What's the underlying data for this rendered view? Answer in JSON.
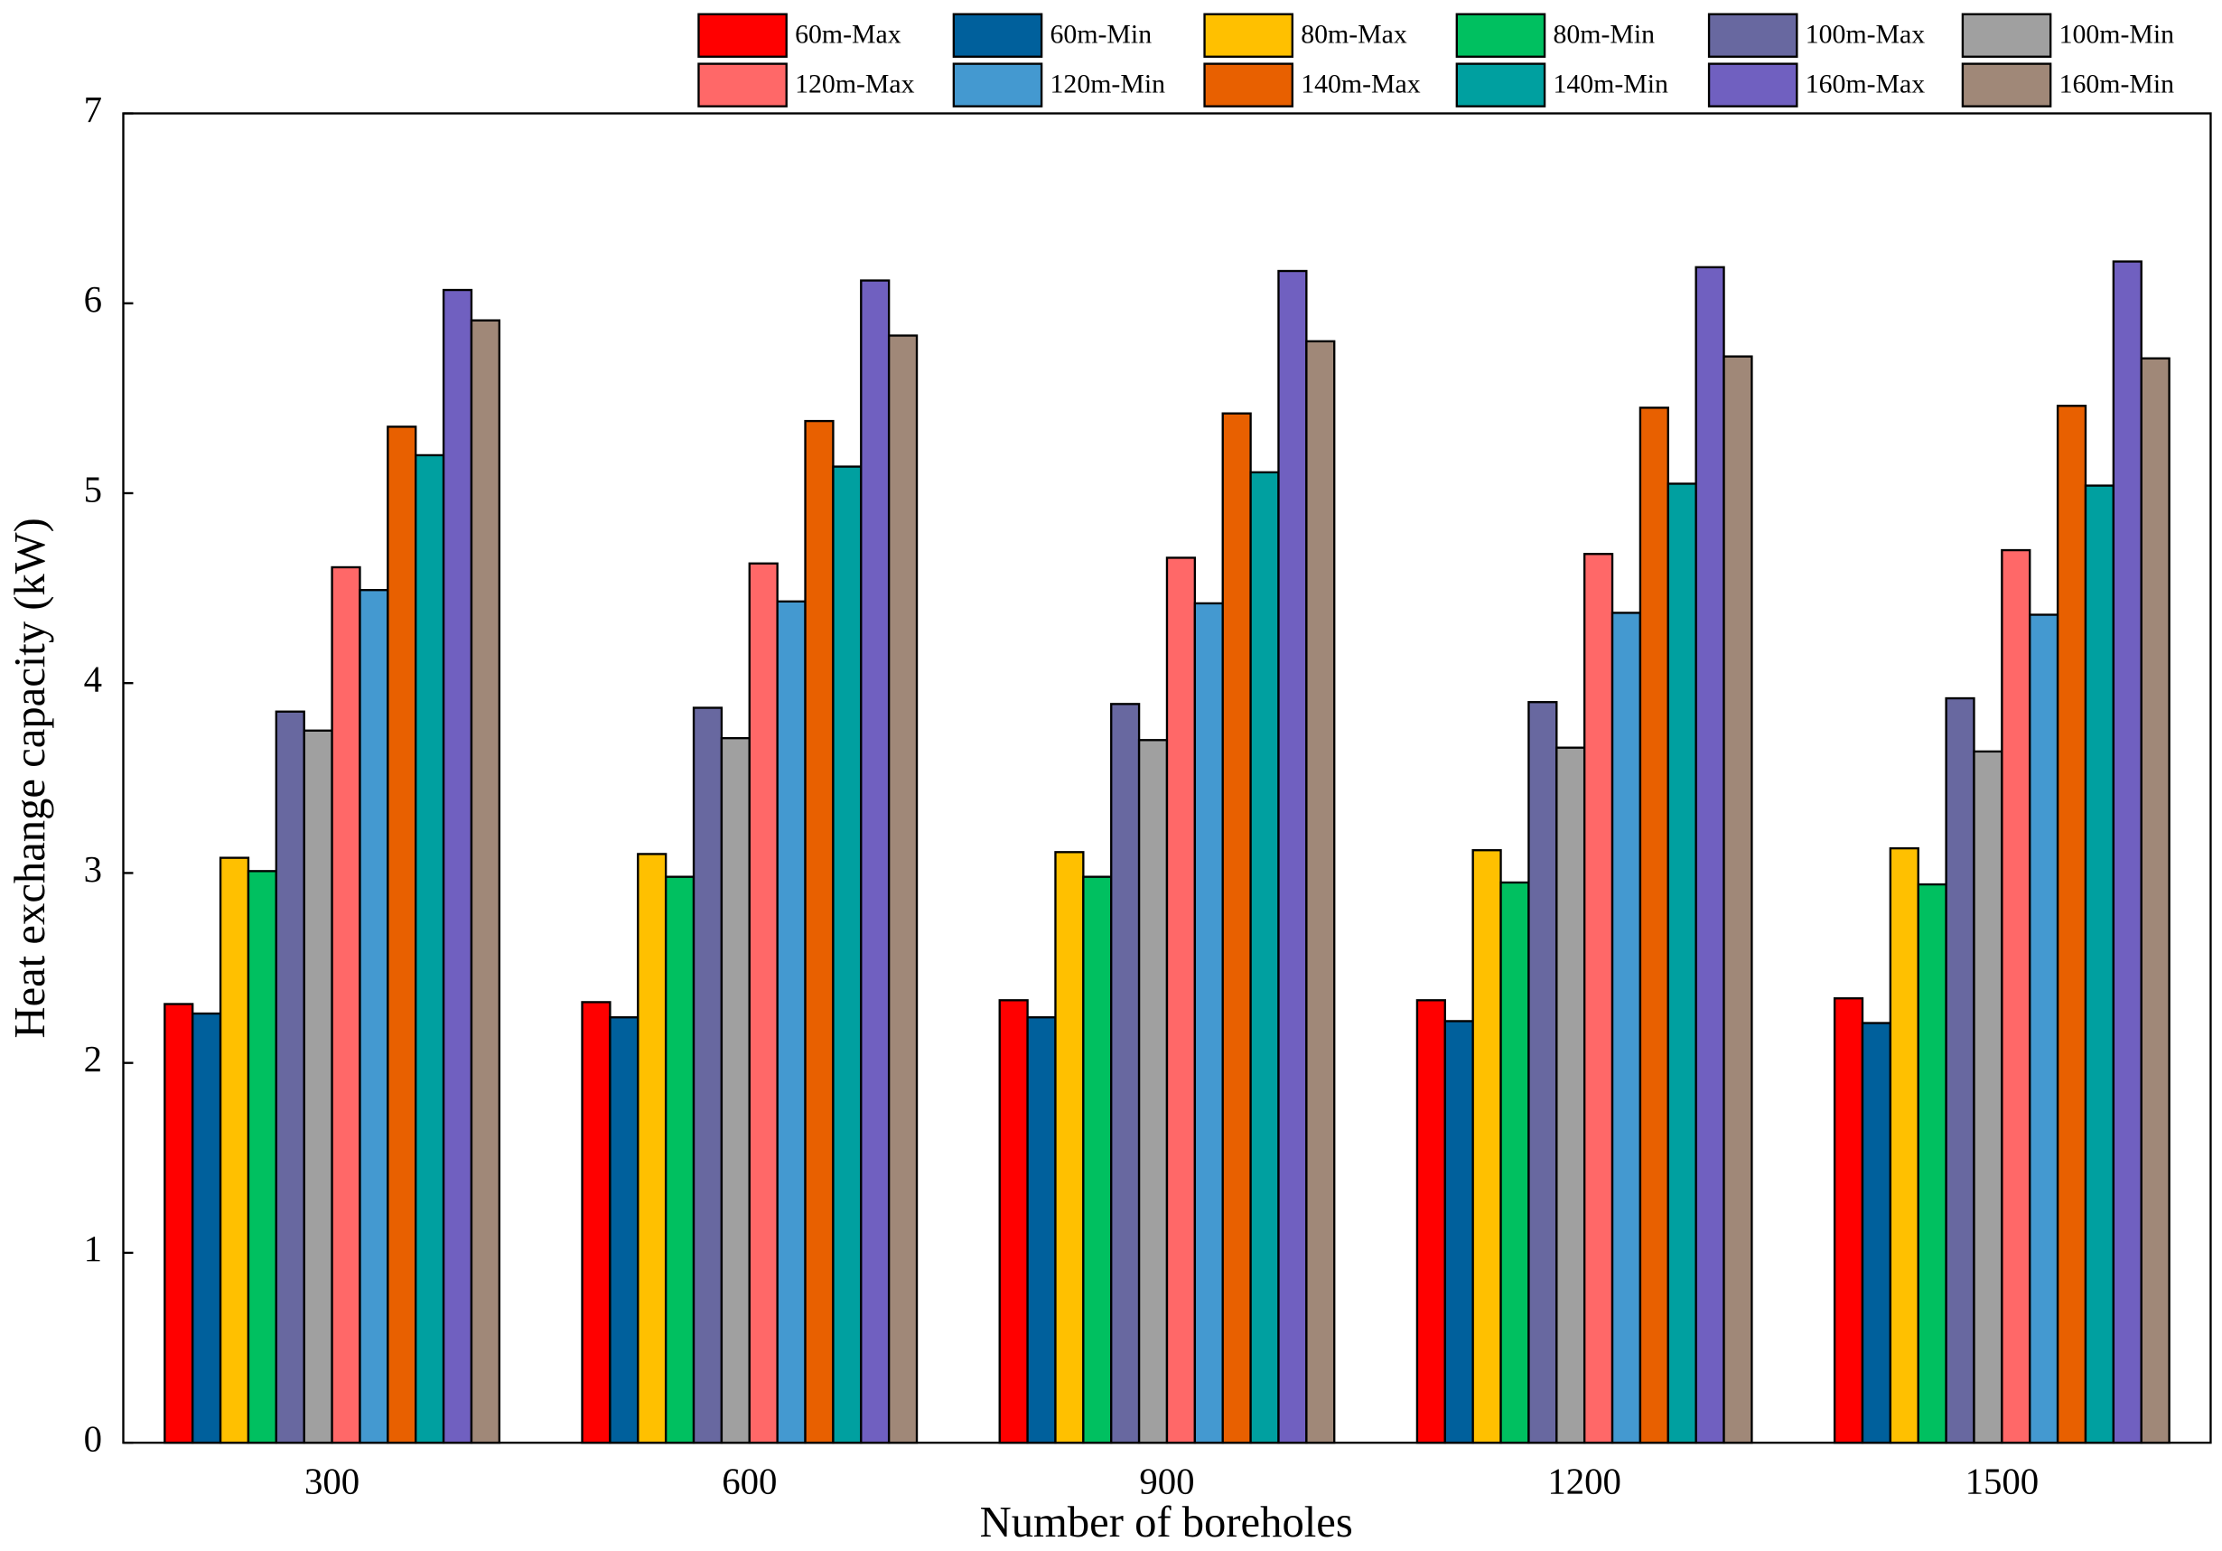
{
  "chart_data": {
    "type": "bar",
    "x_label": "Number of boreholes",
    "y_label": "Heat exchange capacity (kW)",
    "categories": [
      "300",
      "600",
      "900",
      "1200",
      "1500"
    ],
    "ylim": [
      0,
      7
    ],
    "yticks": [
      0,
      1,
      2,
      3,
      4,
      5,
      6,
      7
    ],
    "grid": false,
    "legend": "top",
    "series": [
      {
        "name": "60m-Max",
        "color": "#ff0000",
        "values": [
          2.31,
          2.32,
          2.33,
          2.33,
          2.34
        ]
      },
      {
        "name": "60m-Min",
        "color": "#00609c",
        "values": [
          2.26,
          2.24,
          2.24,
          2.22,
          2.21
        ]
      },
      {
        "name": "80m-Max",
        "color": "#ffc000",
        "values": [
          3.08,
          3.1,
          3.11,
          3.12,
          3.13
        ]
      },
      {
        "name": "80m-Min",
        "color": "#00c060",
        "values": [
          3.01,
          2.98,
          2.98,
          2.95,
          2.94
        ]
      },
      {
        "name": "100m-Max",
        "color": "#6868a0",
        "values": [
          3.85,
          3.87,
          3.89,
          3.9,
          3.92
        ]
      },
      {
        "name": "100m-Min",
        "color": "#a0a0a0",
        "values": [
          3.75,
          3.71,
          3.7,
          3.66,
          3.64
        ]
      },
      {
        "name": "120m-Max",
        "color": "#ff6868",
        "values": [
          4.61,
          4.63,
          4.66,
          4.68,
          4.7
        ]
      },
      {
        "name": "120m-Min",
        "color": "#4499d0",
        "values": [
          4.49,
          4.43,
          4.42,
          4.37,
          4.36
        ]
      },
      {
        "name": "140m-Max",
        "color": "#e86000",
        "values": [
          5.35,
          5.38,
          5.42,
          5.45,
          5.46
        ]
      },
      {
        "name": "140m-Min",
        "color": "#00a0a0",
        "values": [
          5.2,
          5.14,
          5.11,
          5.05,
          5.04
        ]
      },
      {
        "name": "160m-Max",
        "color": "#7060c0",
        "values": [
          6.07,
          6.12,
          6.17,
          6.19,
          6.22
        ]
      },
      {
        "name": "160m-Min",
        "color": "#a08878",
        "values": [
          5.91,
          5.83,
          5.8,
          5.72,
          5.71
        ]
      }
    ]
  }
}
